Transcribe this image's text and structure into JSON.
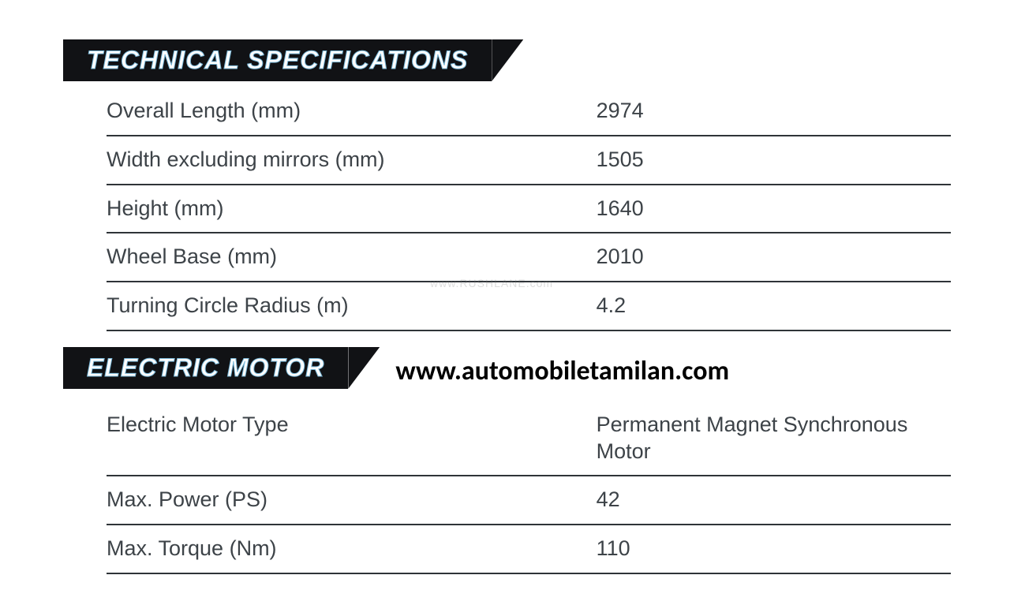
{
  "section1": {
    "title": "TECHNICAL SPECIFICATIONS",
    "rows": [
      {
        "label": "Overall Length (mm)",
        "value": "2974"
      },
      {
        "label": "Width excluding mirrors (mm)",
        "value": "1505"
      },
      {
        "label": "Height (mm)",
        "value": "1640"
      },
      {
        "label": "Wheel Base (mm)",
        "value": "2010"
      },
      {
        "label": "Turning Circle Radius (m)",
        "value": "4.2"
      }
    ]
  },
  "section2": {
    "title": "ELECTRIC MOTOR",
    "rows": [
      {
        "label": "Electric Motor Type",
        "value": "Permanent Magnet Synchronous Motor"
      },
      {
        "label": "Max. Power (PS)",
        "value": "42"
      },
      {
        "label": "Max. Torque (Nm)",
        "value": "110"
      }
    ]
  },
  "url_text": "www.automobiletamilan.com",
  "watermark": "www.RUSHLANE.com",
  "styles": {
    "header_bg": "#111215",
    "header_stroke": "#7bb8d8",
    "text_color": "#3d4348",
    "border_color": "#2f3438",
    "body_bg": "#ffffff",
    "header_fontsize": 32,
    "cell_fontsize": 27,
    "url_fontsize": 34
  }
}
